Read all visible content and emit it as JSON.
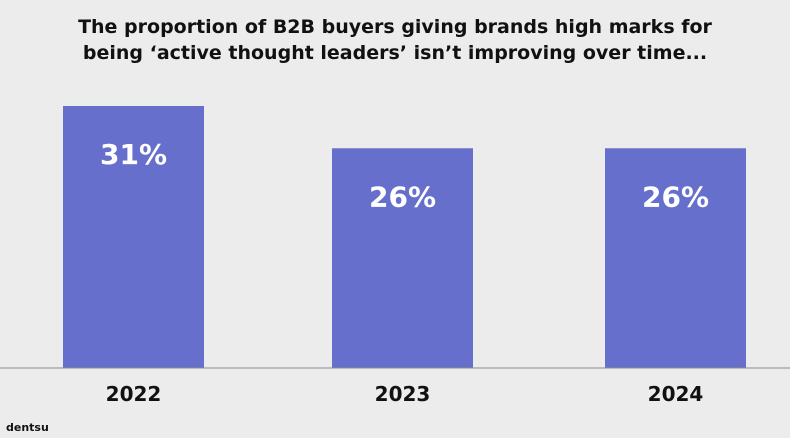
{
  "title_lines": [
    "The proportion of B2B buyers giving brands high marks for",
    "being ‘active thought leaders’ isn’t improving over time..."
  ],
  "brand": "dentsu",
  "colors": {
    "bar": "#6670cc",
    "label_inside": "#ffffff",
    "axis": "#8a8a8a",
    "text": "#111111",
    "background": "#ececec"
  },
  "chart_data": {
    "type": "bar",
    "title": "The proportion of B2B buyers giving brands high marks for being ‘active thought leaders’ isn’t improving over time...",
    "categories": [
      "2022",
      "2023",
      "2024"
    ],
    "values": [
      31,
      26,
      26
    ],
    "data_labels": [
      "31%",
      "26%",
      "26%"
    ],
    "xlabel": "",
    "ylabel": "",
    "ylim": [
      0,
      31
    ],
    "grid": false,
    "legend": "none"
  }
}
